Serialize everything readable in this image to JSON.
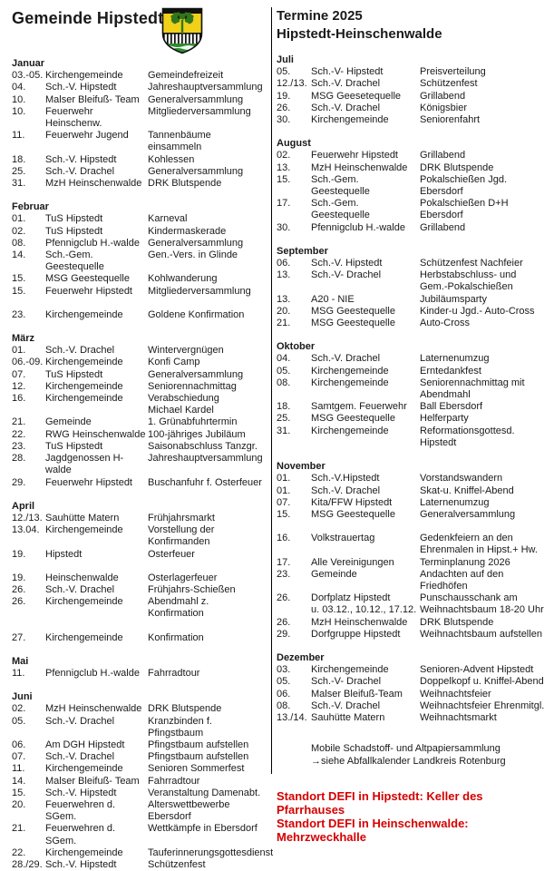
{
  "left": {
    "title": "Gemeinde Hipstedt",
    "crest": {
      "icon": "hipstedt-coat-of-arms",
      "gold": "#f0d019",
      "tree_green": "#31761c",
      "base_green": "#2e8b2e",
      "wave_white": "#eef6f2",
      "outline_black": "#111111",
      "fence_white": "#f5f5f5"
    },
    "months": [
      {
        "name": "Januar",
        "rows": [
          {
            "d": "03.-05.",
            "o": "Kirchengemeinde",
            "e": "Gemeindefreizeit"
          },
          {
            "d": "04.",
            "o": "Sch.-V. Hipstedt",
            "e": "Jahreshauptversammlung"
          },
          {
            "d": "10.",
            "o": "Malser Bleifuß- Team",
            "e": "Generalversammlung"
          },
          {
            "d": "10.",
            "o": "Feuerwehr Heinschenw.",
            "e": "Mitgliederversammlung"
          },
          {
            "d": "11.",
            "o": "Feuerwehr Jugend",
            "e": "Tannenbäume einsammeln"
          },
          {
            "d": "18.",
            "o": "Sch.-V. Hipstedt",
            "e": "Kohlessen"
          },
          {
            "d": "25.",
            "o": "Sch.-V. Drachel",
            "e": "Generalversammlung"
          },
          {
            "d": "31.",
            "o": "MzH Heinschenwalde",
            "e": "DRK Blutspende"
          }
        ]
      },
      {
        "name": "Februar",
        "rows": [
          {
            "d": "01.",
            "o": "TuS Hipstedt",
            "e": "Karneval"
          },
          {
            "d": "02.",
            "o": "TuS Hipstedt",
            "e": "Kindermaskerade"
          },
          {
            "d": "08.",
            "o": "Pfennigclub H.-walde",
            "e": "Generalversammlung"
          },
          {
            "d": "14.",
            "o": "Sch.-Gem. Geestequelle",
            "e": "Gen.-Vers. in Glinde"
          },
          {
            "d": "15.",
            "o": "MSG Geestequelle",
            "e": "Kohlwanderung"
          },
          {
            "d": "15.",
            "o": "Feuerwehr Hipstedt",
            "e": "Mitgliederversammlung"
          },
          {
            "d": "23.",
            "o": "Kirchengemeinde",
            "e": "Goldene Konfirmation",
            "gap": true
          }
        ]
      },
      {
        "name": "März",
        "rows": [
          {
            "d": "01.",
            "o": "Sch.-V. Drachel",
            "e": "Wintervergnügen"
          },
          {
            "d": "06.-09.",
            "o": "Kirchengemeinde",
            "e": "Konfi Camp"
          },
          {
            "d": "07.",
            "o": "TuS Hipstedt",
            "e": "Generalversammlung"
          },
          {
            "d": "12.",
            "o": "Kirchengemeinde",
            "e": "Seniorennachmittag"
          },
          {
            "d": "16.",
            "o": "Kirchengemeinde",
            "e": "Verabschiedung\nMichael Kardel"
          },
          {
            "d": "21.",
            "o": "Gemeinde",
            "e": "1. Grünabfuhrtermin"
          },
          {
            "d": "22.",
            "o": "RWG Heinschenwalde",
            "e": "100-jähriges Jubiläum"
          },
          {
            "d": "23.",
            "o": "TuS Hipstedt",
            "e": "Saisonabschluss Tanzgr."
          },
          {
            "d": "28.",
            "o": "Jagdgenossen H-walde",
            "e": "Jahreshauptversammlung"
          },
          {
            "d": "29.",
            "o": "Feuerwehr Hipstedt",
            "e": "Buschanfuhr f. Osterfeuer"
          }
        ]
      },
      {
        "name": "April",
        "rows": [
          {
            "d": "12./13.",
            "o": "Sauhütte Matern",
            "e": "Frühjahrsmarkt"
          },
          {
            "d": "13.04.",
            "o": "Kirchengemeinde",
            "e": "Vorstellung der\nKonfirmanden"
          },
          {
            "d": "19.",
            "o": "Hipstedt",
            "e": "Osterfeuer"
          },
          {
            "d": "19.",
            "o": "Heinschenwalde",
            "e": "Osterlagerfeuer",
            "gap": true
          },
          {
            "d": "26.",
            "o": "Sch.-V. Drachel",
            "e": "Frühjahrs-Schießen"
          },
          {
            "d": "26.",
            "o": "Kirchengemeinde",
            "e": "Abendmahl z. Konfirmation"
          },
          {
            "d": "27.",
            "o": "Kirchengemeinde",
            "e": "Konfirmation",
            "gap": true
          }
        ]
      },
      {
        "name": "Mai",
        "rows": [
          {
            "d": "11.",
            "o": "Pfennigclub H.-walde",
            "e": "Fahrradtour"
          }
        ]
      },
      {
        "name": "Juni",
        "rows": [
          {
            "d": "02.",
            "o": "MzH Heinschenwalde",
            "e": "DRK Blutspende"
          },
          {
            "d": "05.",
            "o": "Sch.-V. Drachel",
            "e": "Kranzbinden f. Pfingstbaum"
          },
          {
            "d": "06.",
            "o": "Am DGH Hipstedt",
            "e": "Pfingstbaum aufstellen"
          },
          {
            "d": "07.",
            "o": "Sch.-V. Drachel",
            "e": "Pfingstbaum aufstellen"
          },
          {
            "d": "11.",
            "o": "Kirchengemeinde",
            "e": "Senioren Sommerfest"
          },
          {
            "d": "14.",
            "o": "Malser Bleifuß- Team",
            "e": "Fahrradtour"
          },
          {
            "d": "15.",
            "o": "Sch.-V. Hipstedt",
            "e": "Veranstaltung Damenabt."
          },
          {
            "d": "20.",
            "o": "Feuerwehren d. SGem.",
            "e": "Alterswettbewerbe Ebersdorf"
          },
          {
            "d": "21.",
            "o": "Feuerwehren d. SGem.",
            "e": "Wettkämpfe in Ebersdorf"
          },
          {
            "d": "22.",
            "o": "Kirchengemeinde",
            "e": "Tauferinnerungsgottesdienst"
          },
          {
            "d": "28./29.",
            "o": "Sch.-V. Hipstedt",
            "e": "Schützenfest"
          }
        ]
      }
    ]
  },
  "right": {
    "title_line1": "Termine 2025",
    "title_line2": "Hipstedt-Heinschenwalde",
    "months": [
      {
        "name": "Juli",
        "rows": [
          {
            "d": "05.",
            "o": "Sch.-V- Hipstedt",
            "e": "Preisverteilung"
          },
          {
            "d": "12./13.",
            "o": "Sch.-V. Drachel",
            "e": "Schützenfest"
          },
          {
            "d": "19.",
            "o": "MSG Geesetequelle",
            "e": "Grillabend"
          },
          {
            "d": "26.",
            "o": "Sch.-V. Drachel",
            "e": "Königsbier"
          },
          {
            "d": "30.",
            "o": "Kirchengemeinde",
            "e": "Seniorenfahrt"
          }
        ]
      },
      {
        "name": "August",
        "rows": [
          {
            "d": "02.",
            "o": "Feuerwehr Hipstedt",
            "e": "Grillabend"
          },
          {
            "d": "13.",
            "o": "MzH Heinschenwalde",
            "e": "DRK Blutspende"
          },
          {
            "d": "15.",
            "o": "Sch.-Gem. Geestequelle",
            "e": "Pokalschießen Jgd. Ebersdorf"
          },
          {
            "d": "17.",
            "o": "Sch.-Gem. Geestequelle",
            "e": "Pokalschießen D+H Ebersdorf"
          },
          {
            "d": "30.",
            "o": "Pfennigclub H.-walde",
            "e": "Grillabend"
          }
        ]
      },
      {
        "name": "September",
        "rows": [
          {
            "d": "06.",
            "o": "Sch.-V. Hipstedt",
            "e": "Schützenfest Nachfeier"
          },
          {
            "d": "13.",
            "o": "Sch.-V- Drachel",
            "e": "Herbstabschluss- und\nGem.-Pokalschießen"
          },
          {
            "d": "13.",
            "o": "A20 - NIE",
            "e": "Jubiläumsparty"
          },
          {
            "d": "20.",
            "o": "MSG Geestequelle",
            "e": "Kinder-u Jgd.- Auto-Cross"
          },
          {
            "d": "21.",
            "o": "MSG Geestequelle",
            "e": "Auto-Cross"
          }
        ]
      },
      {
        "name": "Oktober",
        "rows": [
          {
            "d": "04.",
            "o": "Sch.-V. Drachel",
            "e": "Laternenumzug"
          },
          {
            "d": "05.",
            "o": "Kirchengemeinde",
            "e": "Erntedankfest"
          },
          {
            "d": "08.",
            "o": "Kirchengemeinde",
            "e": "Seniorennachmittag mit\nAbendmahl"
          },
          {
            "d": "18.",
            "o": "Samtgem. Feuerwehr",
            "e": "Ball Ebersdorf"
          },
          {
            "d": "25.",
            "o": "MSG Geestequelle",
            "e": "Helferparty"
          },
          {
            "d": "31.",
            "o": "Kirchengemeinde",
            "e": "Reformationsgottesd. Hipstedt"
          }
        ]
      },
      {
        "name": "November",
        "rows": [
          {
            "d": "01.",
            "o": "Sch.-V.Hipstedt",
            "e": "Vorstandswandern"
          },
          {
            "d": "01.",
            "o": "Sch.-V. Drachel",
            "e": "Skat-u. Kniffel-Abend"
          },
          {
            "d": "07.",
            "o": "Kita/FFW Hipstedt",
            "e": "Laternenumzug"
          },
          {
            "d": "15.",
            "o": "MSG Geestequelle",
            "e": "Generalversammlung"
          },
          {
            "d": "16.",
            "o": "Volkstrauertag",
            "e": "Gedenkfeiern an den\nEhrenmalen in Hipst.+ Hw.",
            "gap": true
          },
          {
            "d": "17.",
            "o": "Alle Vereinigungen",
            "e": "Terminplanung 2026"
          },
          {
            "d": "23.",
            "o": "Gemeinde",
            "e": "Andachten auf den Friedhöfen"
          },
          {
            "d": "26.",
            "o": "Dorfplatz Hipstedt\nu. 03.12., 10.12., 17.12.",
            "e": "Punschausschank am\nWeihnachtsbaum 18-20 Uhr"
          },
          {
            "d": "26.",
            "o": "MzH Heinschenwalde",
            "e": "DRK Blutspende"
          },
          {
            "d": "29.",
            "o": "Dorfgruppe Hipstedt",
            "e": "Weihnachtsbaum aufstellen"
          }
        ]
      },
      {
        "name": "Dezember",
        "rows": [
          {
            "d": "03.",
            "o": "Kirchengemeinde",
            "e": "Senioren-Advent Hipstedt"
          },
          {
            "d": "05.",
            "o": "Sch.-V- Drachel",
            "e": "Doppelkopf u. Kniffel-Abend"
          },
          {
            "d": "06.",
            "o": "Malser Bleifuß-Team",
            "e": "Weihnachtsfeier"
          },
          {
            "d": "08.",
            "o": "Sch.-V. Drachel",
            "e": "Weihnachtsfeier Ehrenmitgl."
          },
          {
            "d": "13./14.",
            "o": "Sauhütte Matern",
            "e": "Weihnachtsmarkt"
          }
        ]
      }
    ],
    "waste_note": {
      "line1": "Mobile Schadstoff- und Altpapiersammlung",
      "line2": "→siehe Abfallkalender Landkreis Rotenburg"
    },
    "defi_notice": {
      "color": "#d60000",
      "line1": "Standort DEFI in Hipstedt: Keller des Pfarrhauses",
      "line2": "Standort DEFI in Heinschenwalde: Mehrzweckhalle"
    }
  }
}
